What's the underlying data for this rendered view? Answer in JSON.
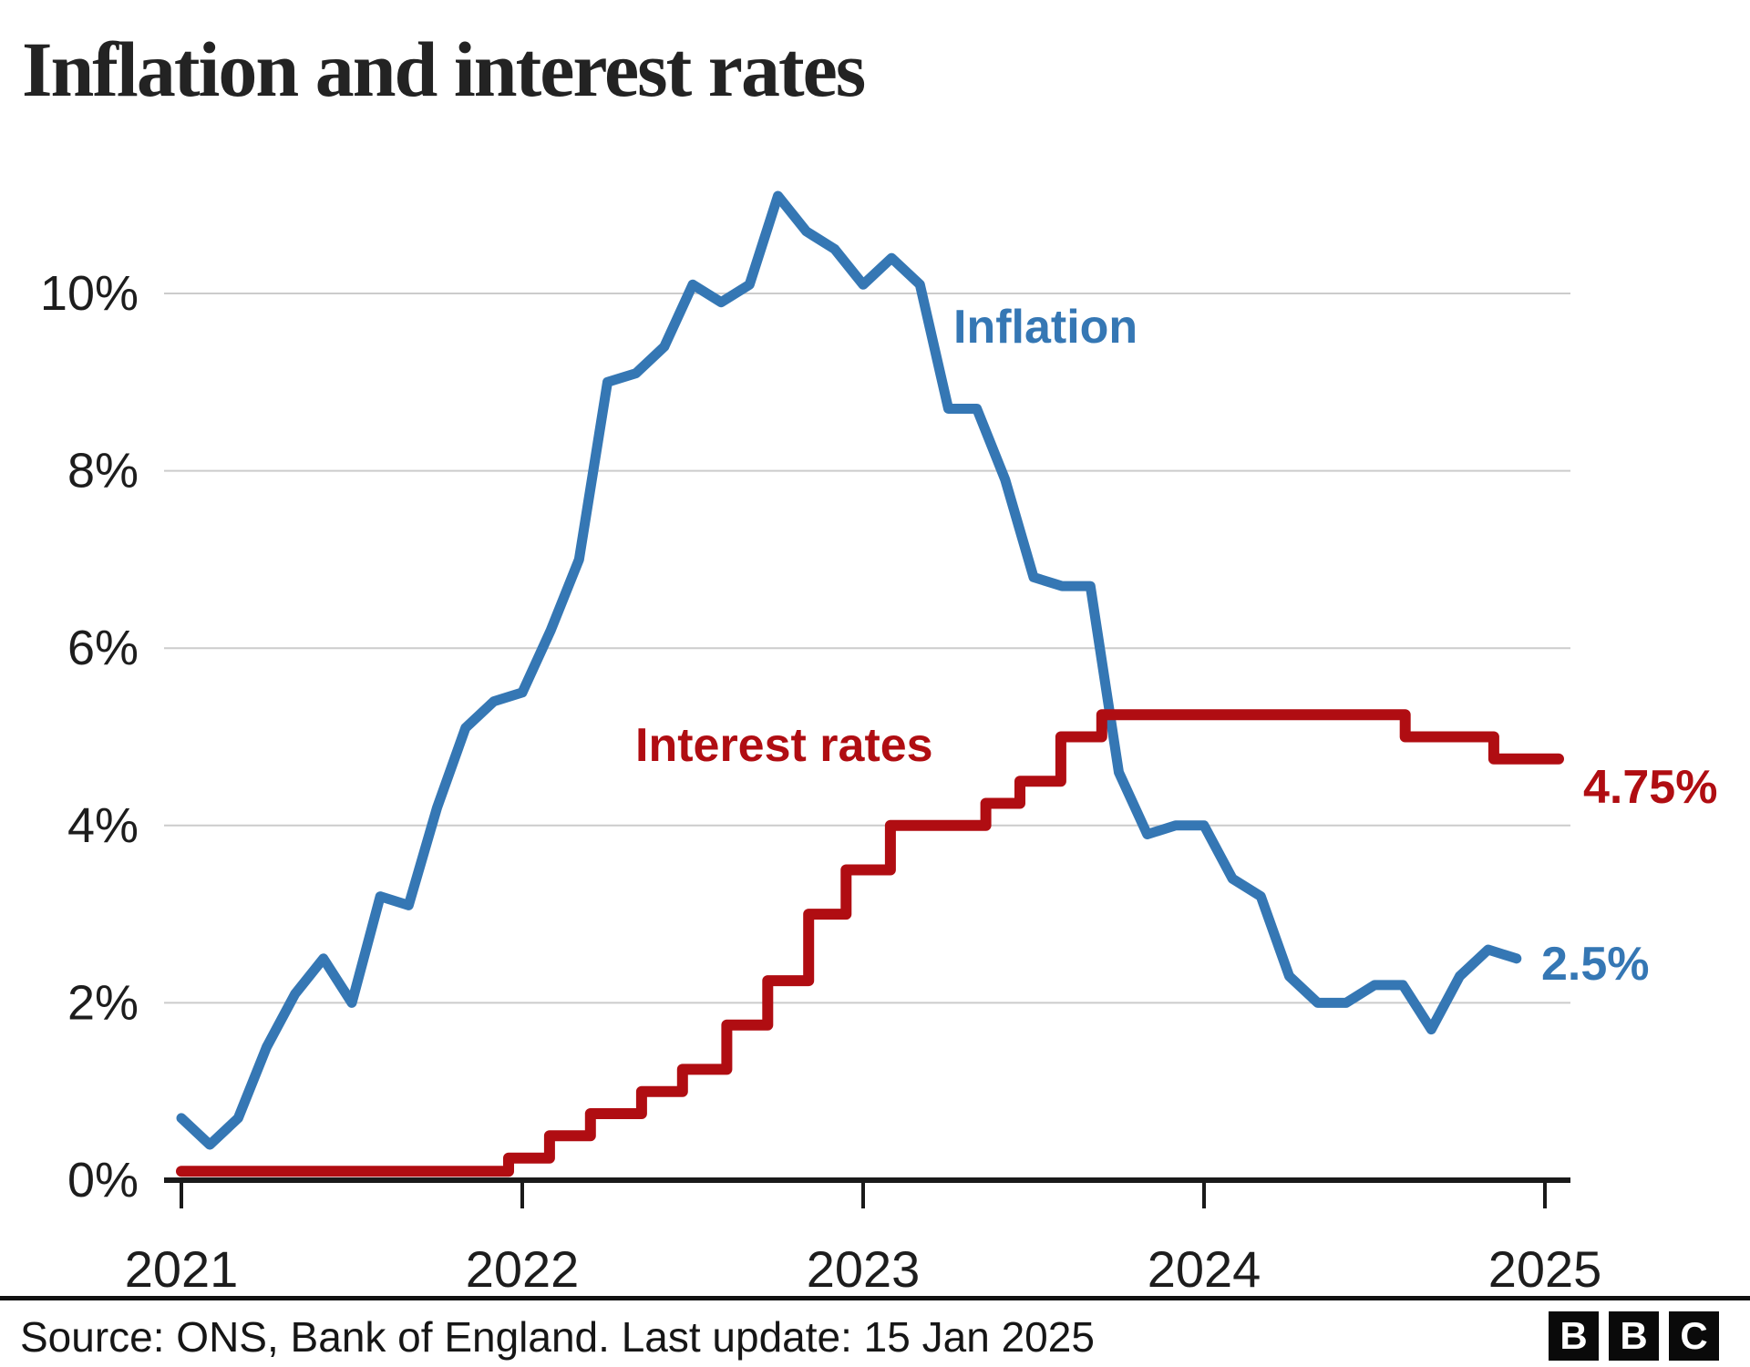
{
  "title": "Inflation and interest rates",
  "chart_data": {
    "type": "line",
    "title": "Inflation and interest rates",
    "grid": true,
    "legend_position": "inline-annotations",
    "x_axis": {
      "ticks": [
        2021,
        2022,
        2023,
        2024,
        2025
      ],
      "tick_labels": [
        "2021",
        "2022",
        "2023",
        "2024",
        "2025"
      ],
      "range": [
        2021.0,
        2025.12
      ]
    },
    "y_axis": {
      "ticks": [
        0,
        2,
        4,
        6,
        8,
        10
      ],
      "tick_labels": [
        "0%",
        "2%",
        "4%",
        "6%",
        "8%",
        "10%"
      ],
      "range": [
        0,
        11.6
      ]
    },
    "series": [
      {
        "name": "Inflation",
        "kind": "monthly-line",
        "color": "#3577b4",
        "start_year": 2021,
        "interval_months": 1,
        "values": [
          0.7,
          0.4,
          0.7,
          1.5,
          2.1,
          2.5,
          2.0,
          3.2,
          3.1,
          4.2,
          5.1,
          5.4,
          5.5,
          6.2,
          7.0,
          9.0,
          9.1,
          9.4,
          10.1,
          9.9,
          10.1,
          11.1,
          10.7,
          10.5,
          10.1,
          10.4,
          10.1,
          8.7,
          8.7,
          7.9,
          6.8,
          6.7,
          6.7,
          4.6,
          3.9,
          4.0,
          4.0,
          3.4,
          3.2,
          2.3,
          2.0,
          2.0,
          2.2,
          2.2,
          1.7,
          2.3,
          2.6,
          2.5
        ],
        "end_value_label": "2.5%"
      },
      {
        "name": "Interest rates",
        "kind": "step-line",
        "color": "#b00d12",
        "breakpoints": [
          [
            2021.0,
            0.1
          ],
          [
            2021.96,
            0.25
          ],
          [
            2022.08,
            0.5
          ],
          [
            2022.2,
            0.75
          ],
          [
            2022.35,
            1.0
          ],
          [
            2022.47,
            1.25
          ],
          [
            2022.6,
            1.75
          ],
          [
            2022.72,
            2.25
          ],
          [
            2022.84,
            3.0
          ],
          [
            2022.95,
            3.5
          ],
          [
            2023.08,
            4.0
          ],
          [
            2023.36,
            4.25
          ],
          [
            2023.46,
            4.5
          ],
          [
            2023.58,
            5.0
          ],
          [
            2023.7,
            5.25
          ],
          [
            2024.59,
            5.0
          ],
          [
            2024.85,
            4.75
          ]
        ],
        "end_x": 2025.04,
        "end_value_label": "4.75%"
      }
    ]
  },
  "annotations": {
    "inflation_label": "Inflation",
    "interest_label": "Interest rates",
    "inflation_end_value": "2.5%",
    "interest_end_value": "4.75%"
  },
  "footer": {
    "source": "Source: ONS, Bank of England. Last update: 15 Jan 2025",
    "logo_letters": [
      "B",
      "B",
      "C"
    ]
  },
  "colors": {
    "inflation": "#3577b4",
    "interest": "#b00d12",
    "gridline": "#cccccc",
    "axis": "#1a1a1a",
    "text": "#1d1d1d"
  }
}
